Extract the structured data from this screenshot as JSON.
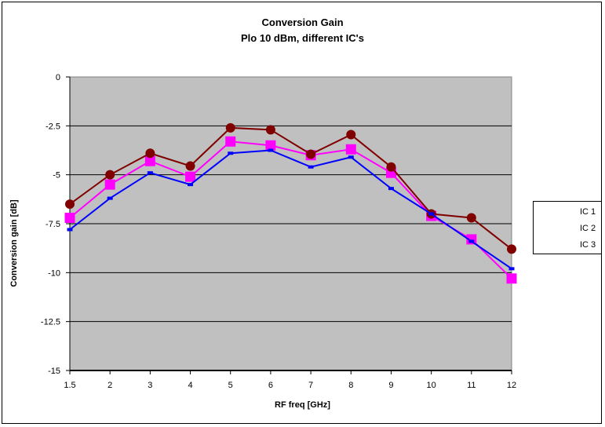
{
  "chart_data": {
    "type": "line",
    "title": "Conversion Gain",
    "subtitle": "Plo 10 dBm, different IC's",
    "xlabel": "RF freq [GHz]",
    "ylabel": "Conversion gain [dB]",
    "categories": [
      "1.5",
      "2",
      "3",
      "4",
      "5",
      "6",
      "7",
      "8",
      "9",
      "10",
      "11",
      "12"
    ],
    "ylim": [
      -15,
      0
    ],
    "yticks": [
      "0",
      "-2.5",
      "-5",
      "-7.5",
      "-10",
      "-12.5",
      "-15"
    ],
    "grid": true,
    "legend_position": "right",
    "plot_background": "#c0c0c0",
    "series": [
      {
        "name": "IC 1",
        "color": "#ff00ff",
        "marker": "square",
        "values": [
          -7.2,
          -5.5,
          -4.3,
          -5.1,
          -3.3,
          -3.5,
          -4.0,
          -3.7,
          -4.9,
          -7.1,
          -8.3,
          -10.3
        ]
      },
      {
        "name": "IC 2",
        "color": "#800000",
        "marker": "circle",
        "values": [
          -6.5,
          -5.0,
          -3.9,
          -4.55,
          -2.6,
          -2.7,
          -3.95,
          -2.95,
          -4.6,
          -7.0,
          -7.2,
          -8.8
        ]
      },
      {
        "name": "IC 3",
        "color": "#0000ff",
        "marker": "dash",
        "values": [
          -7.8,
          -6.2,
          -4.9,
          -5.5,
          -3.9,
          -3.75,
          -4.6,
          -4.1,
          -5.7,
          -7.0,
          -8.4,
          -9.8
        ]
      }
    ]
  }
}
